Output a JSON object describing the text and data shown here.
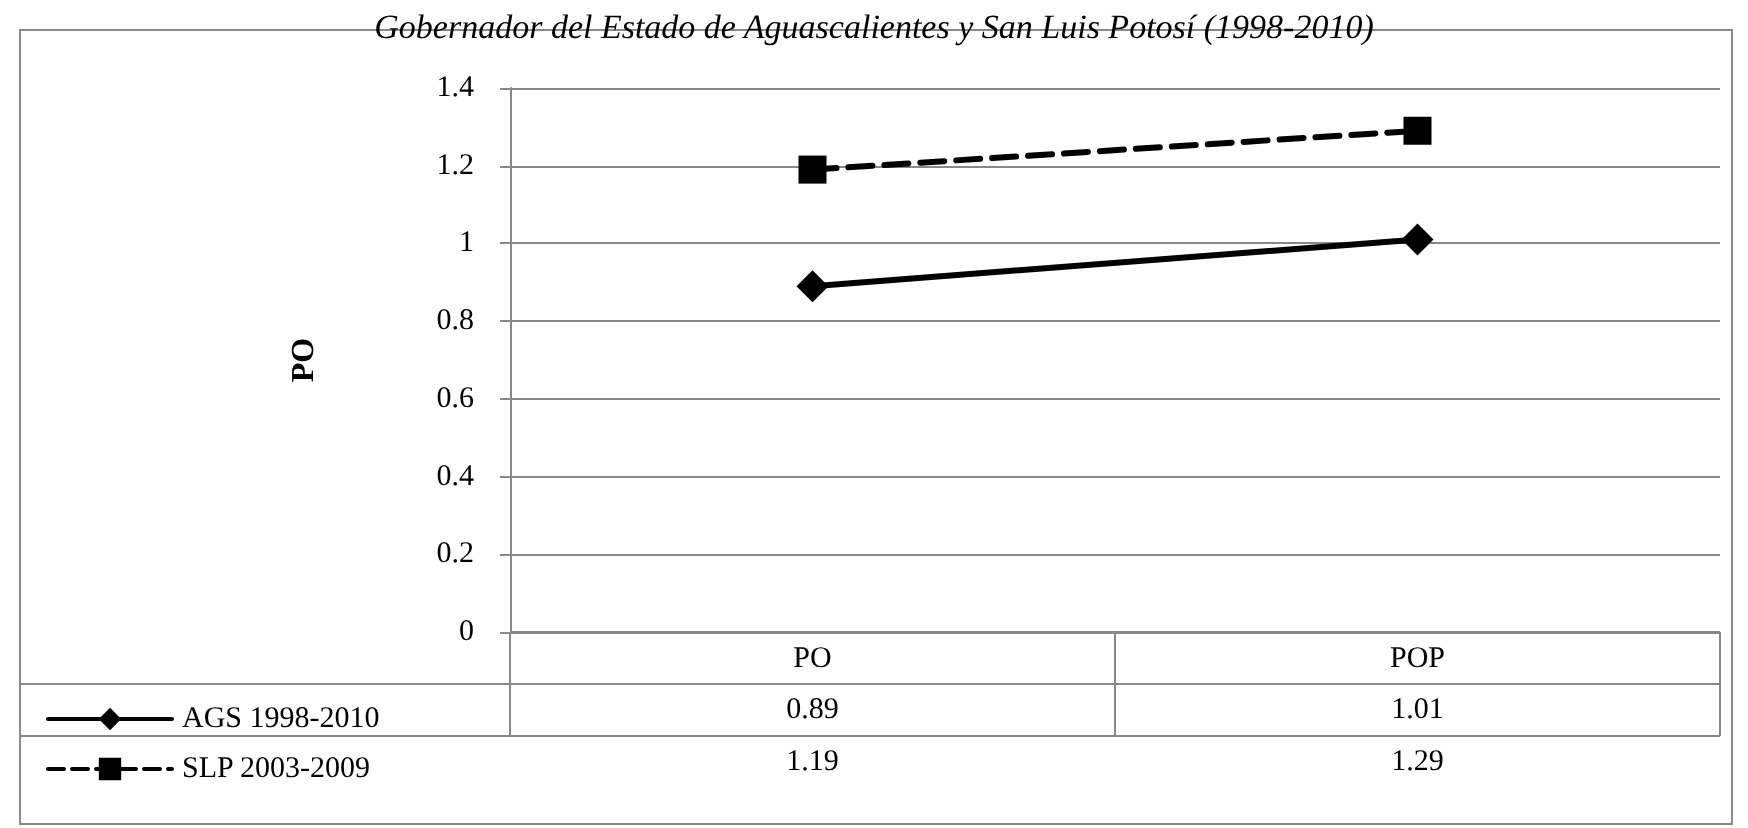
{
  "chart_data": {
    "type": "line",
    "title": "Gobernador del Estado de Aguascalientes y San Luis Potosí (1998-2010)",
    "ylabel": "PO",
    "categories": [
      "PO",
      "POP"
    ],
    "series": [
      {
        "name": "AGS 1998-2010",
        "color": "#000000",
        "values": [
          0.89,
          1.01
        ],
        "marker": "diamond",
        "line_style": "solid"
      },
      {
        "name": "SLP 2003-2009",
        "color": "#000000",
        "values": [
          1.19,
          1.29
        ],
        "marker": "square",
        "line_style": "dashed"
      }
    ],
    "ylim": [
      0,
      1.4
    ],
    "yticks": [
      0,
      0.2,
      0.4,
      0.6,
      0.8,
      1,
      1.2,
      1.4
    ],
    "grid": "y",
    "legend": "bottom left",
    "data_labels": true
  }
}
